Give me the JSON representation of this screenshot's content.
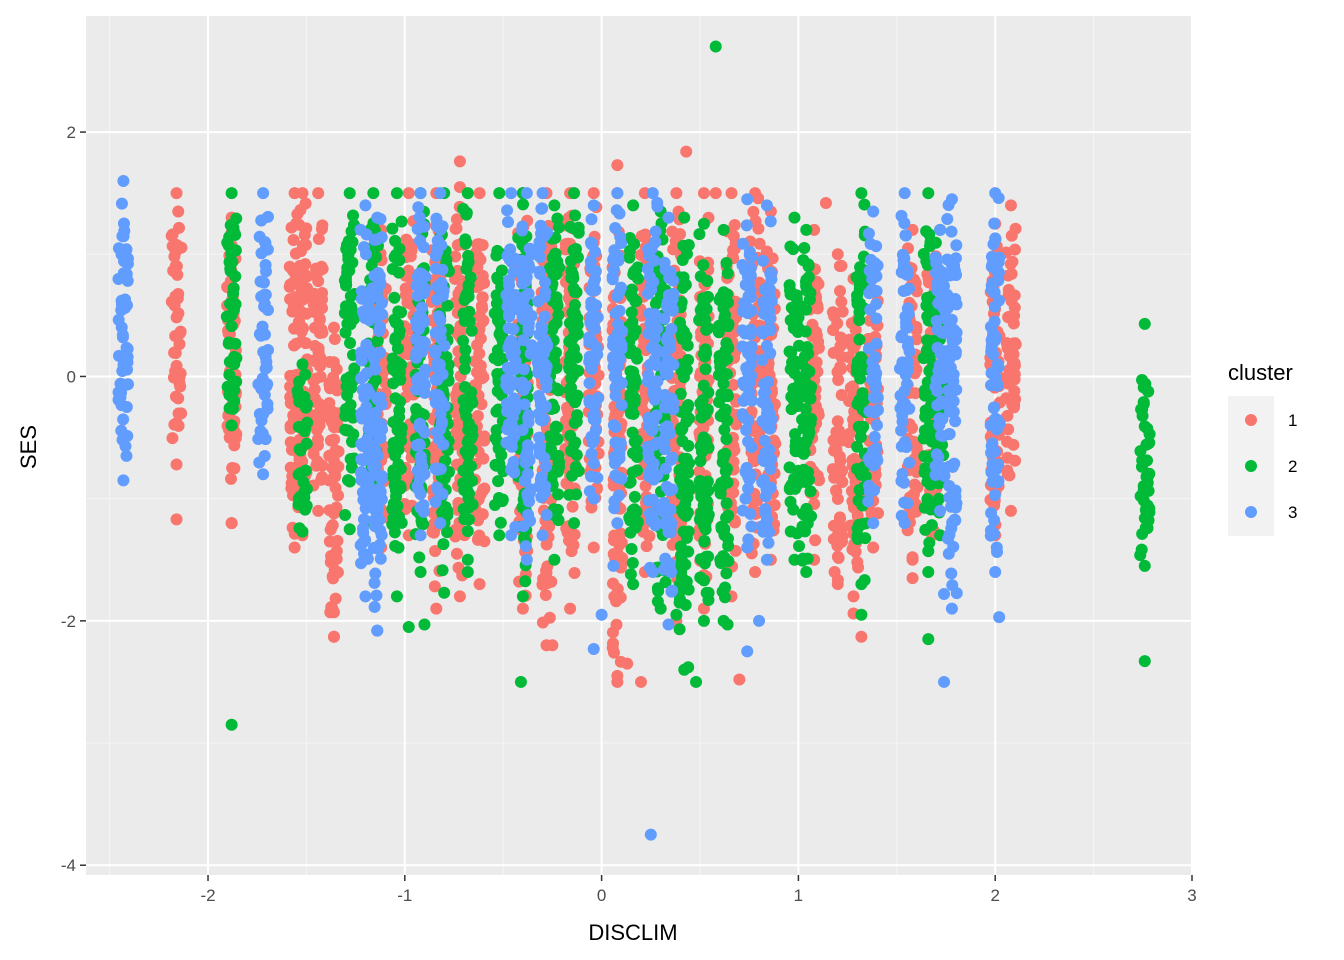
{
  "chart_data": {
    "type": "scatter",
    "title": "",
    "xlabel": "DISCLIM",
    "ylabel": "SES",
    "xlim": [
      -2.62,
      3.0
    ],
    "ylim": [
      -4.08,
      2.95
    ],
    "x_ticks": [
      -2,
      -1,
      0,
      1,
      2,
      3
    ],
    "y_ticks": [
      -4,
      -2,
      0,
      2
    ],
    "x_tick_labels": [
      "-2",
      "-1",
      "0",
      "1",
      "2",
      "3"
    ],
    "y_tick_labels": [
      "-4",
      "-2",
      "0",
      "2"
    ],
    "grid": true,
    "legend": {
      "title": "cluster",
      "position": "right"
    },
    "series": [
      {
        "name": "1",
        "color": "#F8766D",
        "columns": [
          {
            "x": -2.16,
            "ymin": -0.72,
            "ymax": 1.5
          },
          {
            "x": -1.88,
            "ymin": -1.2,
            "ymax": 1.3
          },
          {
            "x": -1.56,
            "ymin": -1.4,
            "ymax": 1.5
          },
          {
            "x": -1.52,
            "ymin": -1.3,
            "ymax": 1.5
          },
          {
            "x": -1.44,
            "ymin": -1.1,
            "ymax": 1.5
          },
          {
            "x": -1.36,
            "ymin": -2.13,
            "ymax": 0.4
          },
          {
            "x": -1.12,
            "ymin": -1.4,
            "ymax": 1.2
          },
          {
            "x": -0.98,
            "ymin": -1.3,
            "ymax": 1.5
          },
          {
            "x": -0.84,
            "ymin": -1.9,
            "ymax": 1.5
          },
          {
            "x": -0.72,
            "ymin": -1.8,
            "ymax": 1.55
          },
          {
            "x": -0.62,
            "ymin": -1.7,
            "ymax": 1.5
          },
          {
            "x": -0.4,
            "ymin": -1.9,
            "ymax": 1.5
          },
          {
            "x": -0.28,
            "ymin": -2.2,
            "ymax": 1.5
          },
          {
            "x": -0.16,
            "ymin": -1.9,
            "ymax": 1.5
          },
          {
            "x": -0.04,
            "ymin": -1.4,
            "ymax": 1.5
          },
          {
            "x": 0.08,
            "ymin": -2.5,
            "ymax": 1.5
          },
          {
            "x": 0.22,
            "ymin": -1.6,
            "ymax": 1.5
          },
          {
            "x": 0.38,
            "ymin": -2.0,
            "ymax": 1.5
          },
          {
            "x": 0.52,
            "ymin": -1.9,
            "ymax": 1.5
          },
          {
            "x": 0.66,
            "ymin": -1.8,
            "ymax": 1.5
          },
          {
            "x": 0.78,
            "ymin": -1.6,
            "ymax": 1.5
          },
          {
            "x": 0.86,
            "ymin": -1.5,
            "ymax": 1.35
          },
          {
            "x": 1.08,
            "ymin": -1.5,
            "ymax": 1.2
          },
          {
            "x": 1.2,
            "ymin": -1.7,
            "ymax": 1.0
          },
          {
            "x": 1.28,
            "ymin": -1.8,
            "ymax": 0.8
          },
          {
            "x": 1.38,
            "ymin": -1.4,
            "ymax": 0.9
          },
          {
            "x": 1.58,
            "ymin": -1.5,
            "ymax": 1.2
          },
          {
            "x": 1.68,
            "ymin": -1.3,
            "ymax": 1.1
          },
          {
            "x": 2.0,
            "ymin": -1.3,
            "ymax": 1.25
          },
          {
            "x": 2.08,
            "ymin": -1.1,
            "ymax": 1.4
          }
        ],
        "points": [
          [
            -2.16,
            -1.17
          ],
          [
            -1.88,
            -1.2
          ],
          [
            -1.36,
            -2.13
          ],
          [
            -1.36,
            -1.93
          ],
          [
            -0.72,
            1.76
          ],
          [
            0.43,
            1.84
          ],
          [
            0.08,
            1.73
          ],
          [
            0.2,
            -2.5
          ],
          [
            0.08,
            -2.45
          ],
          [
            0.7,
            -2.48
          ],
          [
            -0.25,
            -2.2
          ],
          [
            0.13,
            -2.35
          ],
          [
            1.32,
            -2.13
          ],
          [
            1.28,
            -1.94
          ],
          [
            1.58,
            -1.65
          ],
          [
            1.58,
            -1.48
          ],
          [
            1.14,
            1.42
          ],
          [
            0.58,
            1.5
          ]
        ]
      },
      {
        "name": "2",
        "color": "#00BA38",
        "columns": [
          {
            "x": -1.88,
            "ymin": -0.4,
            "ymax": 1.5
          },
          {
            "x": -1.52,
            "ymin": -1.27,
            "ymax": 0.1
          },
          {
            "x": -1.28,
            "ymin": -1.25,
            "ymax": 1.5
          },
          {
            "x": -1.16,
            "ymin": -1.2,
            "ymax": 1.5
          },
          {
            "x": -1.04,
            "ymin": -1.8,
            "ymax": 1.5
          },
          {
            "x": -0.92,
            "ymin": -1.6,
            "ymax": 1.5
          },
          {
            "x": -0.8,
            "ymin": -1.77,
            "ymax": 1.5
          },
          {
            "x": -0.68,
            "ymin": -1.6,
            "ymax": 1.5
          },
          {
            "x": -0.52,
            "ymin": -1.3,
            "ymax": 1.5
          },
          {
            "x": -0.4,
            "ymin": -1.8,
            "ymax": 1.5
          },
          {
            "x": -0.24,
            "ymin": -1.5,
            "ymax": 1.4
          },
          {
            "x": -0.14,
            "ymin": -1.2,
            "ymax": 1.5
          },
          {
            "x": 0.16,
            "ymin": -1.7,
            "ymax": 1.4
          },
          {
            "x": 0.3,
            "ymin": -1.9,
            "ymax": 1.35
          },
          {
            "x": 0.42,
            "ymin": -2.4,
            "ymax": 1.3
          },
          {
            "x": 0.52,
            "ymin": -2.0,
            "ymax": 1.25
          },
          {
            "x": 0.62,
            "ymin": -2.0,
            "ymax": 1.2
          },
          {
            "x": 0.98,
            "ymin": -1.5,
            "ymax": 1.3
          },
          {
            "x": 1.04,
            "ymin": -1.6,
            "ymax": 1.2
          },
          {
            "x": 1.32,
            "ymin": -1.7,
            "ymax": 1.5
          },
          {
            "x": 1.66,
            "ymin": -1.6,
            "ymax": 1.5
          },
          {
            "x": 1.72,
            "ymin": -1.3,
            "ymax": 1.2
          },
          {
            "x": 2.76,
            "ymin": -1.55,
            "ymax": 0.43
          }
        ],
        "points": [
          [
            -1.88,
            -2.85
          ],
          [
            0.58,
            2.7
          ],
          [
            2.76,
            -2.33
          ],
          [
            1.66,
            -2.15
          ],
          [
            0.48,
            -2.5
          ],
          [
            -0.41,
            -2.5
          ],
          [
            -0.98,
            -2.05
          ],
          [
            -0.9,
            -2.03
          ],
          [
            0.64,
            -2.03
          ],
          [
            0.38,
            -1.95
          ],
          [
            1.32,
            -1.95
          ],
          [
            0.44,
            -2.38
          ]
        ]
      },
      {
        "name": "3",
        "color": "#619CFF",
        "columns": [
          {
            "x": -2.43,
            "ymin": -0.85,
            "ymax": 1.6
          },
          {
            "x": -1.72,
            "ymin": -0.8,
            "ymax": 1.5
          },
          {
            "x": -1.2,
            "ymin": -1.8,
            "ymax": 1.4
          },
          {
            "x": -1.14,
            "ymin": -2.08,
            "ymax": 1.3
          },
          {
            "x": -0.92,
            "ymin": -1.3,
            "ymax": 1.5
          },
          {
            "x": -0.82,
            "ymin": -1.2,
            "ymax": 1.5
          },
          {
            "x": -0.46,
            "ymin": -1.3,
            "ymax": 1.5
          },
          {
            "x": -0.38,
            "ymin": -1.5,
            "ymax": 1.5
          },
          {
            "x": -0.3,
            "ymin": -1.3,
            "ymax": 1.5
          },
          {
            "x": -0.04,
            "ymin": -1.0,
            "ymax": 1.4
          },
          {
            "x": 0.08,
            "ymin": -1.2,
            "ymax": 1.5
          },
          {
            "x": 0.26,
            "ymin": -1.6,
            "ymax": 1.5
          },
          {
            "x": 0.34,
            "ymin": -2.03,
            "ymax": 1.3
          },
          {
            "x": 0.74,
            "ymin": -1.4,
            "ymax": 1.45
          },
          {
            "x": 0.84,
            "ymin": -1.5,
            "ymax": 1.4
          },
          {
            "x": 1.38,
            "ymin": -1.2,
            "ymax": 1.35
          },
          {
            "x": 1.54,
            "ymin": -1.2,
            "ymax": 1.5
          },
          {
            "x": 1.72,
            "ymin": -1.1,
            "ymax": 1.2
          },
          {
            "x": 1.78,
            "ymin": -1.9,
            "ymax": 1.45
          },
          {
            "x": 2.0,
            "ymin": -1.6,
            "ymax": 1.5
          }
        ],
        "points": [
          [
            0.25,
            -3.75
          ],
          [
            1.74,
            -2.5
          ],
          [
            -0.04,
            -2.23
          ],
          [
            0.74,
            -2.25
          ],
          [
            2.02,
            -1.97
          ],
          [
            -1.14,
            -2.08
          ],
          [
            0.0,
            -1.95
          ],
          [
            0.8,
            -2.0
          ],
          [
            1.74,
            -1.78
          ],
          [
            0.06,
            -1.55
          ]
        ]
      }
    ]
  }
}
